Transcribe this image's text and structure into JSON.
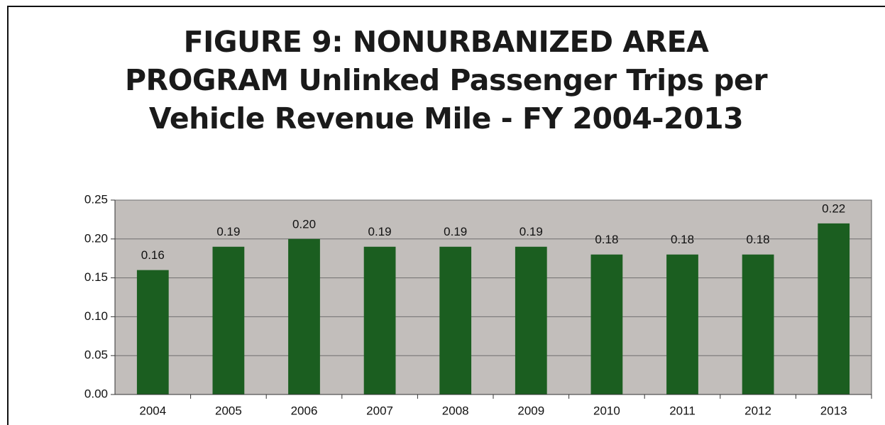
{
  "chart_data": {
    "type": "bar",
    "title": "FIGURE 9: NONURBANIZED AREA\nPROGRAM Unlinked Passenger Trips per\nVehicle Revenue Mile - FY 2004-2013",
    "categories": [
      "2004",
      "2005",
      "2006",
      "2007",
      "2008",
      "2009",
      "2010",
      "2011",
      "2012",
      "2013"
    ],
    "values": [
      0.16,
      0.19,
      0.2,
      0.19,
      0.19,
      0.19,
      0.18,
      0.18,
      0.18,
      0.22
    ],
    "value_labels": [
      "0.16",
      "0.19",
      "0.20",
      "0.19",
      "0.19",
      "0.19",
      "0.18",
      "0.18",
      "0.18",
      "0.22"
    ],
    "color": "#1b5e20",
    "ylim": [
      0,
      0.25
    ],
    "yticks": [
      {
        "value": 0,
        "label": "0.00"
      },
      {
        "value": 0.05,
        "label": "0.05"
      },
      {
        "value": 0.1,
        "label": "0.10"
      },
      {
        "value": 0.15,
        "label": "0.15"
      },
      {
        "value": 0.2,
        "label": "0.20"
      },
      {
        "value": 0.25,
        "label": "0.25"
      }
    ],
    "grid": true
  }
}
